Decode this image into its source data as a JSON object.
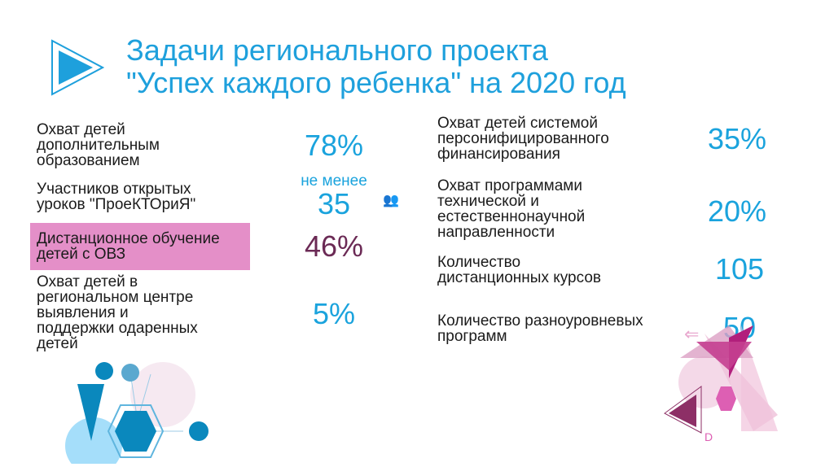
{
  "title": {
    "line1": "Задачи регионального проекта",
    "line2": "\"Успех каждого ребенка\"  на 2020 год"
  },
  "left": [
    {
      "label": "Охват детей дополнительным образованием",
      "value": "78%"
    },
    {
      "label": "Участников открытых уроков \"ПроеКТОриЯ\"",
      "prefix": "не менее",
      "value": "35"
    },
    {
      "label": "Дистанционное обучение детей с ОВЗ",
      "value": "46%"
    },
    {
      "label": "Охват детей в региональном центре выявления и поддержки одаренных детей",
      "value": "5%"
    }
  ],
  "right": [
    {
      "label": "Охват детей системой персонифицированного финансирования",
      "value": "35%"
    },
    {
      "label": "Охват программами технической и естественнонаучной направленности",
      "value": "20%"
    },
    {
      "label": "Количество дистанционных курсов",
      "value": "105"
    },
    {
      "label": "Количество разноуровневых программ",
      "value": "50"
    }
  ],
  "colors": {
    "accent": "#1ea0dc",
    "highlight": "#e48fc8",
    "highlight_value": "#6b2a55"
  }
}
